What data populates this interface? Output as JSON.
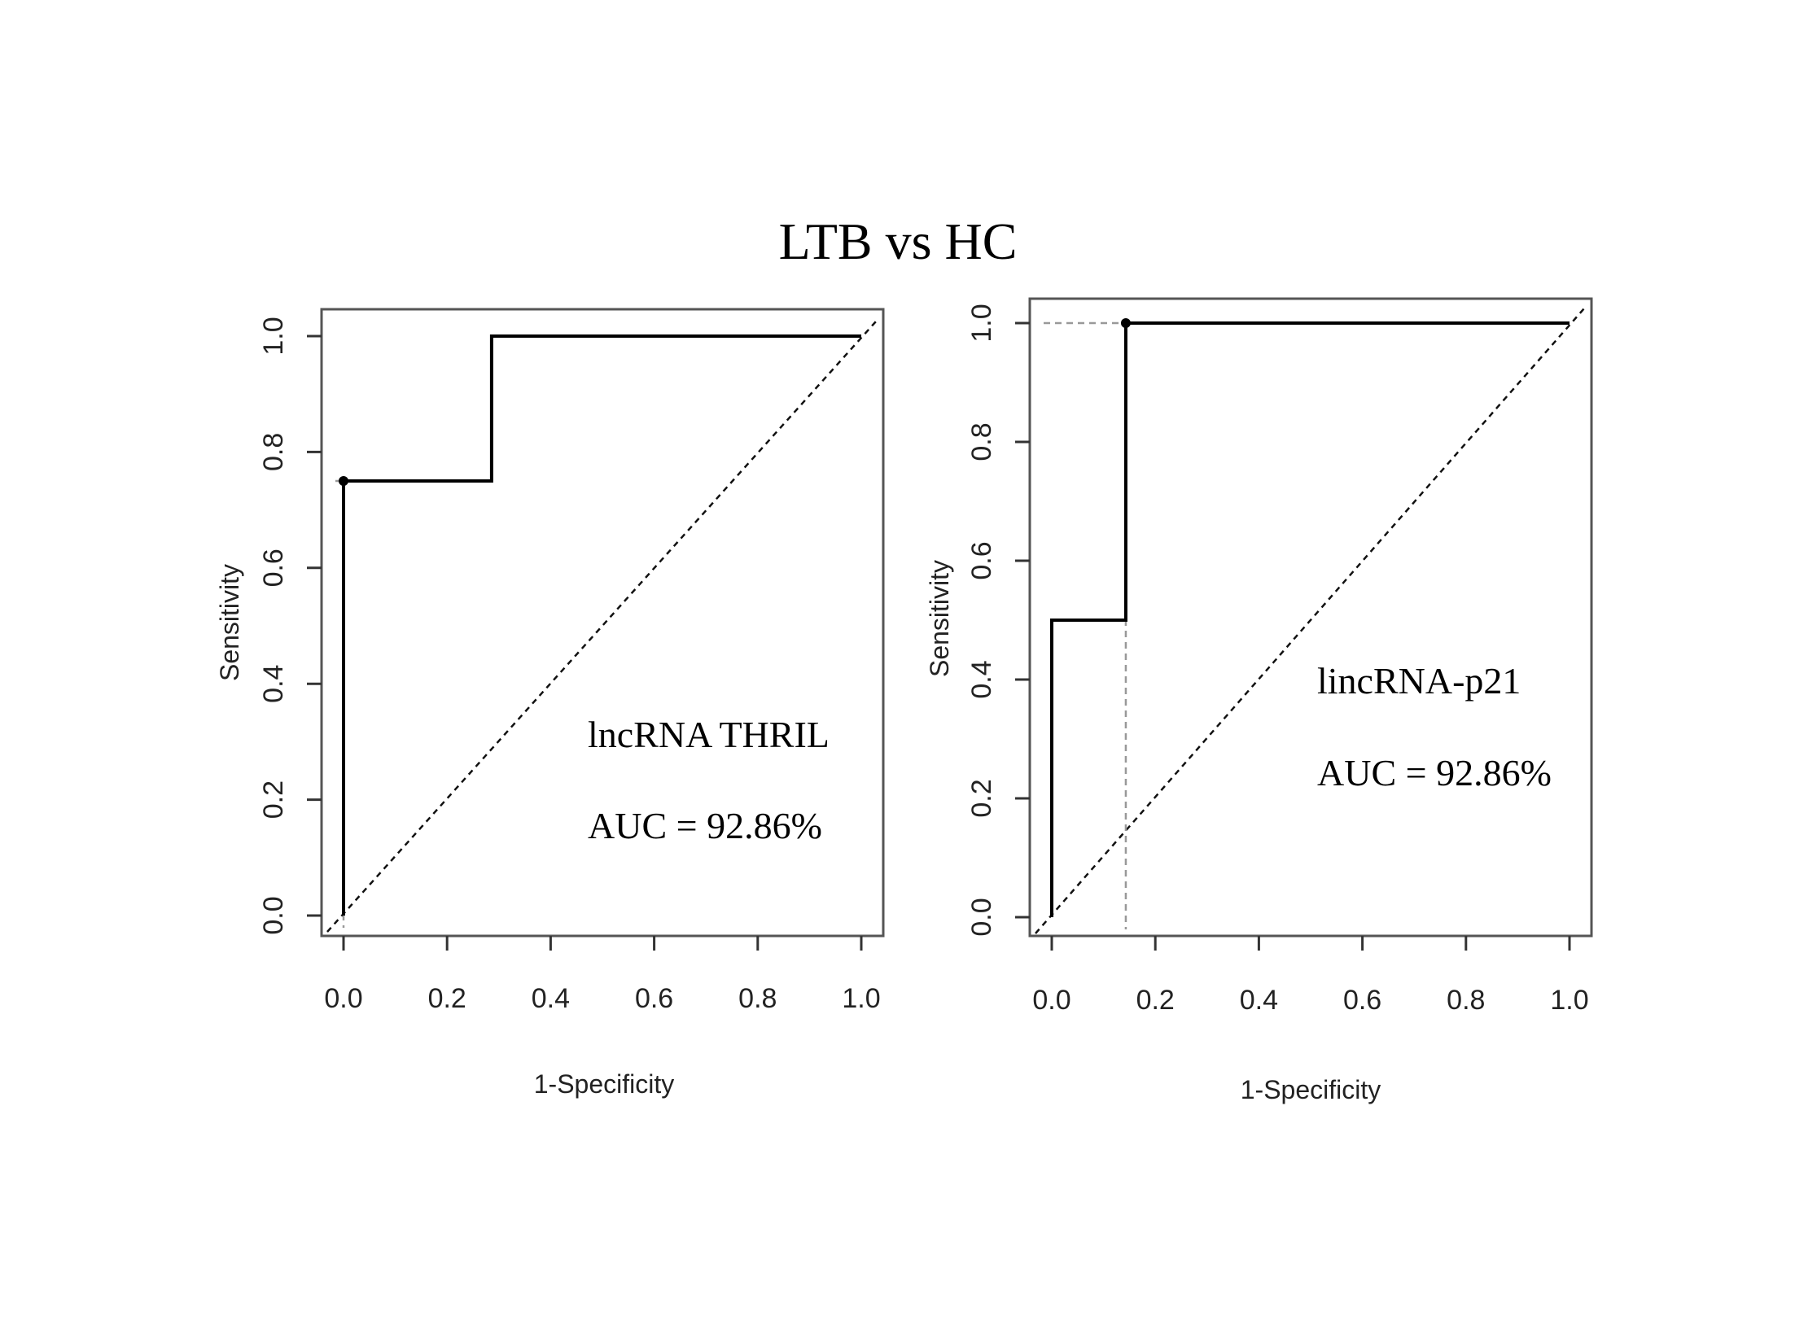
{
  "figure_title": "LTB vs HC",
  "chart_data": [
    {
      "type": "line",
      "title": "",
      "xlabel": "1-Specificity",
      "ylabel": "Sensitivity",
      "xlim": [
        0,
        1
      ],
      "ylim": [
        0,
        1
      ],
      "x_ticks": [
        "0.0",
        "0.2",
        "0.4",
        "0.6",
        "0.8",
        "1.0"
      ],
      "y_ticks": [
        "0.0",
        "0.2",
        "0.4",
        "0.6",
        "0.8",
        "1.0"
      ],
      "annotations": [
        "lncRNA THRIL",
        "AUC = 92.86%"
      ],
      "series": [
        {
          "x": [
            0,
            0,
            0.286,
            0.286,
            1
          ],
          "y": [
            0,
            0.75,
            0.75,
            1.0,
            1.0
          ],
          "color": "#000000"
        }
      ],
      "reference_diagonal": true,
      "cutoff_point": {
        "x": 0,
        "y": 0.75
      },
      "grid": false
    },
    {
      "type": "line",
      "title": "",
      "xlabel": "1-Specificity",
      "ylabel": "Sensitivity",
      "xlim": [
        0,
        1
      ],
      "ylim": [
        0,
        1
      ],
      "x_ticks": [
        "0.0",
        "0.2",
        "0.4",
        "0.6",
        "0.8",
        "1.0"
      ],
      "y_ticks": [
        "0.0",
        "0.2",
        "0.4",
        "0.6",
        "0.8",
        "1.0"
      ],
      "annotations": [
        "lincRNA-p21",
        "AUC = 92.86%"
      ],
      "series": [
        {
          "x": [
            0,
            0,
            0.143,
            0.143,
            1
          ],
          "y": [
            0,
            0.5,
            0.5,
            1.0,
            1.0
          ],
          "color": "#000000"
        }
      ],
      "reference_diagonal": true,
      "cutoff_point": {
        "x": 0.143,
        "y": 1.0
      },
      "grid": false
    }
  ]
}
